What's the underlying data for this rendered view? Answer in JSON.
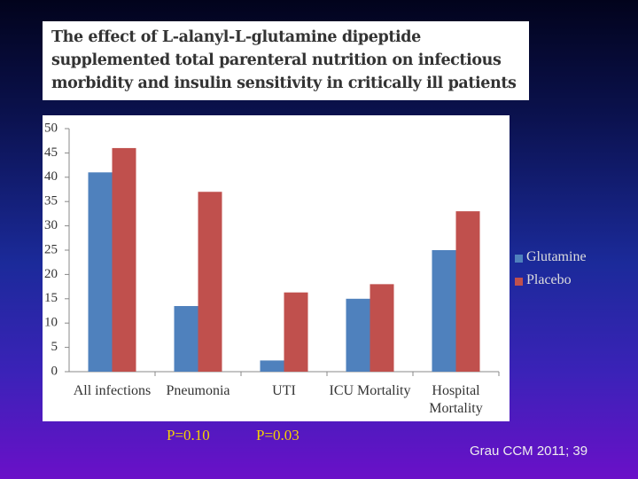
{
  "chart_data": {
    "type": "bar",
    "title": "The effect of L-alanyl-L-glutamine dipeptide supplemented total parenteral nutrition on infectious morbidity and insulin sensitivity in critically ill patients",
    "categories": [
      "All infections",
      "Pneumonia",
      "UTI",
      "ICU Mortality",
      "Hospital Mortality"
    ],
    "series": [
      {
        "name": "Glutamine",
        "color": "#4f81bd",
        "values": [
          41,
          13.5,
          2.3,
          15,
          25
        ]
      },
      {
        "name": "Placebo",
        "color": "#c0504d",
        "values": [
          46,
          37,
          16.3,
          18,
          33
        ]
      }
    ],
    "ylim": [
      0,
      50
    ],
    "yticks": [
      0,
      5,
      10,
      15,
      20,
      25,
      30,
      35,
      40,
      45,
      50
    ],
    "grid": false,
    "legend": "right",
    "annotations": [
      "P=0.10",
      "P=0.03"
    ],
    "source": "Grau CCM 2011; 39"
  }
}
